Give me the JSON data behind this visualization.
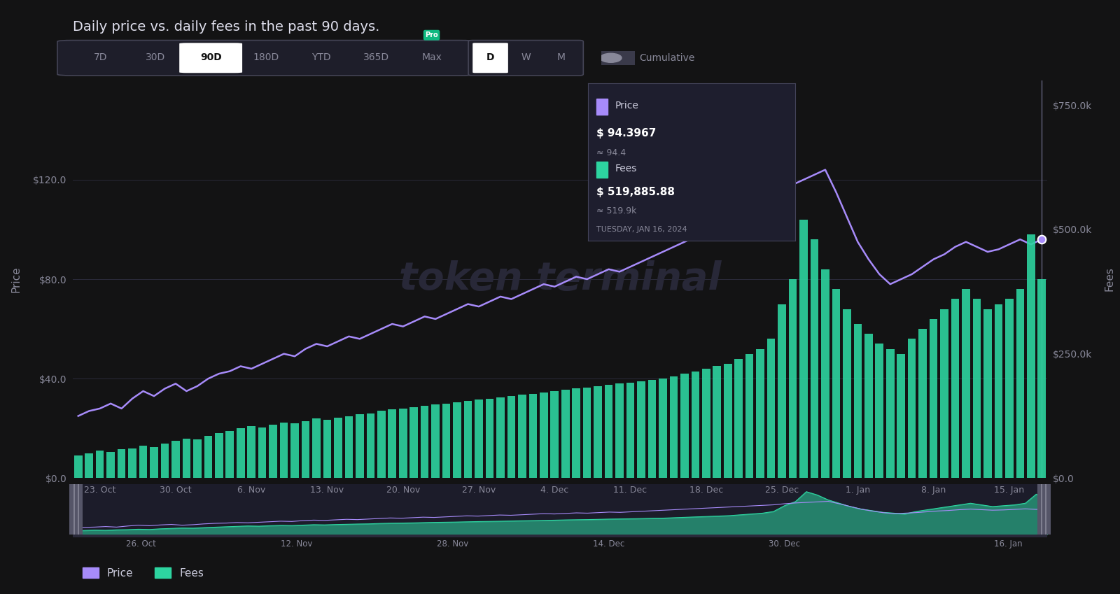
{
  "title": "Daily price vs. daily fees in the past 90 days.",
  "bg_color": "#131314",
  "chart_bg": "#131314",
  "price_color": "#a78bfa",
  "fees_color": "#2dd4a0",
  "price_label": "Price",
  "fees_label": "Fees",
  "x_labels": [
    "23. Oct",
    "30. Oct",
    "6. Nov",
    "13. Nov",
    "20. Nov",
    "27. Nov",
    "4. Dec",
    "11. Dec",
    "18. Dec",
    "25. Dec",
    "1. Jan",
    "8. Jan",
    "15. Jan"
  ],
  "watermark": "token terminal",
  "tooltip_bg": "#22223a",
  "tooltip_date": "TUESDAY, JAN 16, 2024",
  "tooltip_price": "$ 94.3967",
  "tooltip_price_approx": "≈ 94.4",
  "tooltip_fees": "$ 519,885.88",
  "tooltip_fees_approx": "≈ 519.9k",
  "price_data": [
    25,
    27,
    28,
    30,
    28,
    32,
    35,
    33,
    36,
    38,
    35,
    37,
    40,
    42,
    43,
    45,
    44,
    46,
    48,
    50,
    49,
    52,
    54,
    53,
    55,
    57,
    56,
    58,
    60,
    62,
    61,
    63,
    65,
    64,
    66,
    68,
    70,
    69,
    71,
    73,
    72,
    74,
    76,
    78,
    77,
    79,
    81,
    80,
    82,
    84,
    83,
    85,
    87,
    89,
    91,
    93,
    95,
    97,
    99,
    101,
    103,
    105,
    107,
    109,
    111,
    115,
    118,
    120,
    122,
    124,
    115,
    105,
    95,
    88,
    82,
    78,
    80,
    82,
    85,
    88,
    90,
    93,
    95,
    93,
    91,
    92,
    94,
    96,
    94,
    96
  ],
  "fees_data": [
    45000,
    50000,
    55000,
    52000,
    58000,
    60000,
    65000,
    62000,
    70000,
    75000,
    80000,
    78000,
    85000,
    90000,
    95000,
    100000,
    105000,
    102000,
    108000,
    112000,
    110000,
    115000,
    120000,
    118000,
    122000,
    125000,
    128000,
    130000,
    135000,
    138000,
    140000,
    142000,
    145000,
    148000,
    150000,
    152000,
    155000,
    158000,
    160000,
    162000,
    165000,
    168000,
    170000,
    172000,
    175000,
    178000,
    180000,
    182000,
    185000,
    188000,
    190000,
    192000,
    195000,
    198000,
    200000,
    205000,
    210000,
    215000,
    220000,
    225000,
    230000,
    240000,
    250000,
    260000,
    280000,
    350000,
    400000,
    520000,
    480000,
    420000,
    380000,
    340000,
    310000,
    290000,
    270000,
    260000,
    250000,
    280000,
    300000,
    320000,
    340000,
    360000,
    380000,
    360000,
    340000,
    350000,
    360000,
    380000,
    490000,
    400000
  ],
  "mini_labels": [
    "26. Oct",
    "12. Nov",
    "28. Nov",
    "14. Dec",
    "30. Dec",
    "16. Jan"
  ],
  "price_ylim": [
    0,
    160
  ],
  "price_yticks": [
    0,
    40,
    80,
    120
  ],
  "price_yticklabels": [
    "$0.0",
    "$40.0",
    "$80.0",
    "$120.0"
  ],
  "fees_ylim": [
    0,
    800000
  ],
  "fees_yticks": [
    0,
    250000,
    500000,
    750000
  ],
  "fees_yticklabels": [
    "$0.0",
    "$250.0k",
    "$500.0k",
    "$750.0k"
  ]
}
